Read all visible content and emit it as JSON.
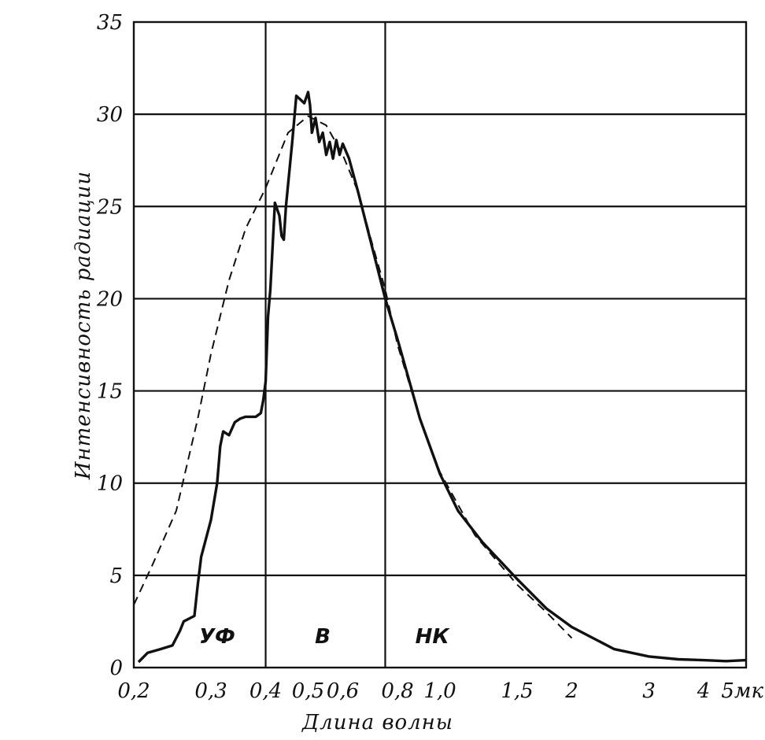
{
  "chart_data": {
    "type": "line",
    "title": "",
    "xlabel": "Длина волны",
    "ylabel": "Интенсивность радиации",
    "xscale": "log",
    "xlim": [
      0.2,
      5
    ],
    "ylim": [
      0,
      35
    ],
    "grid": "horizontal",
    "y_ticks": [
      "0",
      "5",
      "10",
      "15",
      "20",
      "25",
      "30",
      "35"
    ],
    "x_ticks": [
      {
        "value": 0.2,
        "label": "0,2"
      },
      {
        "value": 0.3,
        "label": "0,3"
      },
      {
        "value": 0.4,
        "label": "0,4"
      },
      {
        "value": 0.5,
        "label": "0,5"
      },
      {
        "value": 0.6,
        "label": "0,6"
      },
      {
        "value": 0.8,
        "label": "0,8"
      },
      {
        "value": 1.0,
        "label": "1,0"
      },
      {
        "value": 1.5,
        "label": "1,5"
      },
      {
        "value": 2,
        "label": "2"
      },
      {
        "value": 3,
        "label": "3"
      },
      {
        "value": 4,
        "label": "4"
      },
      {
        "value": 5,
        "label": "5мк"
      }
    ],
    "region_dividers": [
      0.4,
      0.75
    ],
    "regions": [
      {
        "label": "УФ",
        "x": 0.31,
        "y": 1.7
      },
      {
        "label": "В",
        "x": 0.54,
        "y": 1.7
      },
      {
        "label": "НК",
        "x": 0.96,
        "y": 1.7
      }
    ],
    "series": [
      {
        "style": "solid",
        "points": [
          [
            0.205,
            0.3
          ],
          [
            0.215,
            0.8
          ],
          [
            0.23,
            1.0
          ],
          [
            0.245,
            1.2
          ],
          [
            0.255,
            2.0
          ],
          [
            0.26,
            2.5
          ],
          [
            0.275,
            2.8
          ],
          [
            0.28,
            4.5
          ],
          [
            0.285,
            6.0
          ],
          [
            0.3,
            8.0
          ],
          [
            0.31,
            10.0
          ],
          [
            0.315,
            12.0
          ],
          [
            0.32,
            12.8
          ],
          [
            0.33,
            12.6
          ],
          [
            0.34,
            13.3
          ],
          [
            0.35,
            13.5
          ],
          [
            0.36,
            13.6
          ],
          [
            0.38,
            13.6
          ],
          [
            0.39,
            13.8
          ],
          [
            0.395,
            14.5
          ],
          [
            0.4,
            15.5
          ],
          [
            0.405,
            19.0
          ],
          [
            0.41,
            20.5
          ],
          [
            0.42,
            25.2
          ],
          [
            0.43,
            24.5
          ],
          [
            0.435,
            23.4
          ],
          [
            0.44,
            23.2
          ],
          [
            0.445,
            25.0
          ],
          [
            0.46,
            28.5
          ],
          [
            0.47,
            31.0
          ],
          [
            0.48,
            30.8
          ],
          [
            0.49,
            30.6
          ],
          [
            0.5,
            31.2
          ],
          [
            0.505,
            30.5
          ],
          [
            0.51,
            29.0
          ],
          [
            0.52,
            29.8
          ],
          [
            0.53,
            28.5
          ],
          [
            0.54,
            29.0
          ],
          [
            0.55,
            27.8
          ],
          [
            0.56,
            28.5
          ],
          [
            0.57,
            27.6
          ],
          [
            0.58,
            28.6
          ],
          [
            0.59,
            27.8
          ],
          [
            0.6,
            28.4
          ],
          [
            0.62,
            27.6
          ],
          [
            0.65,
            25.8
          ],
          [
            0.7,
            22.8
          ],
          [
            0.75,
            20.0
          ],
          [
            0.8,
            17.8
          ],
          [
            0.9,
            13.5
          ],
          [
            1.0,
            10.5
          ],
          [
            1.1,
            8.5
          ],
          [
            1.25,
            6.8
          ],
          [
            1.5,
            4.8
          ],
          [
            1.75,
            3.2
          ],
          [
            2.0,
            2.2
          ],
          [
            2.5,
            1.0
          ],
          [
            3.0,
            0.6
          ],
          [
            3.5,
            0.45
          ],
          [
            4.0,
            0.4
          ],
          [
            4.5,
            0.35
          ],
          [
            5.0,
            0.4
          ]
        ]
      },
      {
        "style": "dashed",
        "points": [
          [
            0.2,
            3.4
          ],
          [
            0.22,
            5.5
          ],
          [
            0.25,
            8.5
          ],
          [
            0.28,
            13.5
          ],
          [
            0.3,
            17.0
          ],
          [
            0.33,
            21.0
          ],
          [
            0.36,
            23.8
          ],
          [
            0.4,
            26.0
          ],
          [
            0.45,
            29.0
          ],
          [
            0.5,
            29.9
          ],
          [
            0.55,
            29.4
          ],
          [
            0.6,
            27.8
          ],
          [
            0.65,
            25.8
          ],
          [
            0.7,
            23.0
          ],
          [
            0.75,
            20.5
          ],
          [
            0.8,
            17.5
          ],
          [
            0.9,
            13.5
          ],
          [
            1.0,
            10.6
          ],
          [
            1.2,
            7.2
          ],
          [
            1.5,
            4.5
          ],
          [
            1.75,
            3.0
          ],
          [
            2.0,
            1.6
          ]
        ]
      }
    ]
  }
}
